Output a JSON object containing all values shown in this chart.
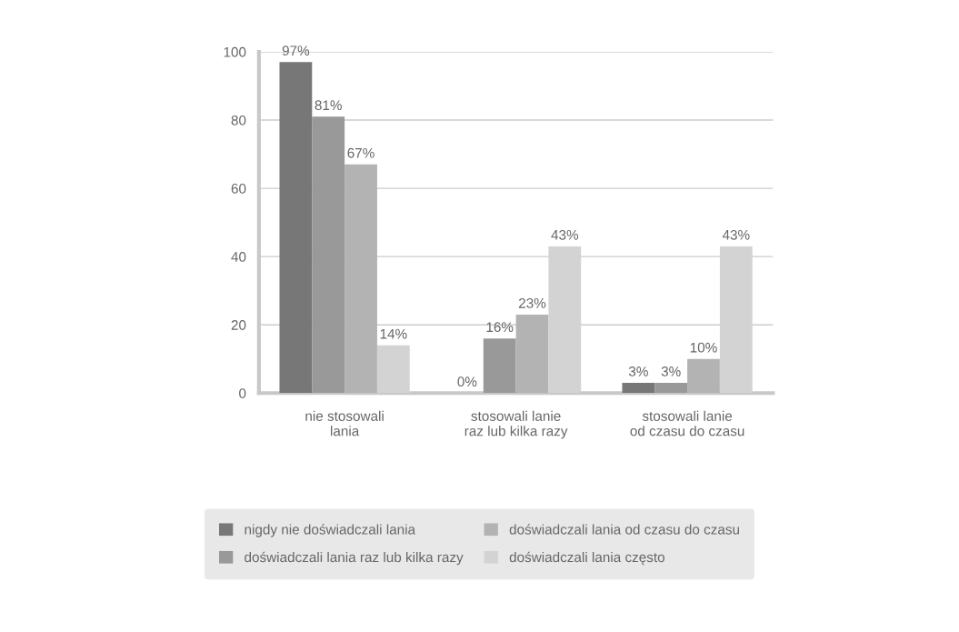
{
  "chart_data": {
    "type": "bar",
    "categories": [
      "nie stosowali\nlania",
      "stosowali lanie\nraz lub kilka razy",
      "stosowali lanie\nod czasu do czasu"
    ],
    "series": [
      {
        "name": "nigdy nie doświadczali lania",
        "color": "#777777",
        "values": [
          97,
          0,
          3
        ]
      },
      {
        "name": "doświadczali lania raz lub kilka razy",
        "color": "#999999",
        "values": [
          81,
          16,
          3
        ]
      },
      {
        "name": "doświadczali lania od czasu do czasu",
        "color": "#b3b3b3",
        "values": [
          67,
          23,
          10
        ]
      },
      {
        "name": "doświadczali lania często",
        "color": "#d3d3d3",
        "values": [
          14,
          43,
          43
        ]
      }
    ],
    "value_labels": [
      [
        "97%",
        "0%",
        "3%"
      ],
      [
        "81%",
        "16%",
        "3%"
      ],
      [
        "67%",
        "23%",
        "10%"
      ],
      [
        "14%",
        "43%",
        "43%"
      ]
    ],
    "ylim": [
      0,
      100
    ],
    "yticks": [
      0,
      20,
      40,
      60,
      80,
      100
    ],
    "grid": "y",
    "legend": "bottom"
  }
}
